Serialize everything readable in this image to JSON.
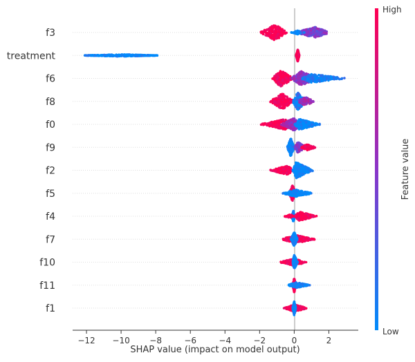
{
  "chart_data": {
    "type": "scatter",
    "subtype": "shap-beeswarm",
    "xlabel": "SHAP value (impact on model output)",
    "xlim": [
      -12.8,
      3.7
    ],
    "xticks": [
      -12,
      -10,
      -8,
      -6,
      -4,
      -2,
      0,
      2
    ],
    "colorbar": {
      "label": "Feature value",
      "high_label": "High",
      "low_label": "Low",
      "high_color": "#ff0052",
      "low_color": "#008bfb"
    },
    "features": [
      {
        "name": "f3",
        "clusters": [
          {
            "min": -2.0,
            "max": -0.4,
            "center": -1.1,
            "fv": 1.0,
            "n": 220,
            "spread": 0.9
          },
          {
            "min": 0.0,
            "max": 2.1,
            "center": 1.2,
            "fv": 0.45,
            "n": 220,
            "spread": 0.6
          },
          {
            "min": -0.2,
            "max": 0.6,
            "center": 0.2,
            "fv": 0.0,
            "n": 60,
            "spread": 0.2
          }
        ]
      },
      {
        "name": "treatment",
        "clusters": [
          {
            "min": -12.1,
            "max": -7.9,
            "center": -10.0,
            "fv": 0.0,
            "n": 400,
            "spread": 0.12,
            "uniform": true
          },
          {
            "min": 0.1,
            "max": 0.3,
            "center": 0.2,
            "fv": 1.0,
            "n": 150,
            "spread": 0.7
          }
        ]
      },
      {
        "name": "f6",
        "clusters": [
          {
            "min": -1.3,
            "max": 0.0,
            "center": -0.8,
            "fv": 1.0,
            "n": 220,
            "spread": 0.9
          },
          {
            "min": -0.2,
            "max": 1.4,
            "center": 0.4,
            "fv": 0.55,
            "n": 220,
            "spread": 0.8
          },
          {
            "min": 0.4,
            "max": 3.0,
            "center": 1.0,
            "fv": 0.05,
            "n": 200,
            "spread": 0.5
          }
        ]
      },
      {
        "name": "f8",
        "clusters": [
          {
            "min": -1.4,
            "max": 0.0,
            "center": -0.7,
            "fv": 1.0,
            "n": 220,
            "spread": 0.9
          },
          {
            "min": -0.1,
            "max": 0.7,
            "center": 0.2,
            "fv": 0.1,
            "n": 180,
            "spread": 1.0
          },
          {
            "min": 0.2,
            "max": 1.2,
            "center": 0.6,
            "fv": 0.6,
            "n": 100,
            "spread": 0.5
          }
        ]
      },
      {
        "name": "f0",
        "clusters": [
          {
            "min": -2.0,
            "max": -0.2,
            "center": -0.5,
            "fv": 1.0,
            "n": 200,
            "spread": 0.6
          },
          {
            "min": -0.8,
            "max": 0.4,
            "center": 0.0,
            "fv": 0.55,
            "n": 150,
            "spread": 0.7
          },
          {
            "min": 0.0,
            "max": 1.5,
            "center": 0.3,
            "fv": 0.0,
            "n": 180,
            "spread": 0.6
          }
        ]
      },
      {
        "name": "f9",
        "clusters": [
          {
            "min": -0.4,
            "max": 0.0,
            "center": -0.2,
            "fv": 0.0,
            "n": 220,
            "spread": 1.0
          },
          {
            "min": 0.0,
            "max": 0.7,
            "center": 0.2,
            "fv": 0.5,
            "n": 120,
            "spread": 0.6
          },
          {
            "min": 0.4,
            "max": 1.3,
            "center": 0.7,
            "fv": 1.0,
            "n": 100,
            "spread": 0.35
          }
        ]
      },
      {
        "name": "f2",
        "clusters": [
          {
            "min": -1.4,
            "max": 0.0,
            "center": -0.4,
            "fv": 1.0,
            "n": 220,
            "spread": 0.5
          },
          {
            "min": -0.1,
            "max": 1.1,
            "center": 0.1,
            "fv": 0.0,
            "n": 220,
            "spread": 0.9
          }
        ]
      },
      {
        "name": "f5",
        "clusters": [
          {
            "min": -0.3,
            "max": 0.1,
            "center": -0.1,
            "fv": 1.0,
            "n": 200,
            "spread": 0.9
          },
          {
            "min": -0.7,
            "max": 1.1,
            "center": 0.1,
            "fv": 0.0,
            "n": 200,
            "spread": 0.4
          }
        ]
      },
      {
        "name": "f4",
        "clusters": [
          {
            "min": -0.15,
            "max": 0.05,
            "center": -0.05,
            "fv": 0.0,
            "n": 150,
            "spread": 0.6
          },
          {
            "min": 0.0,
            "max": 1.3,
            "center": 0.3,
            "fv": 1.0,
            "n": 220,
            "spread": 0.5
          },
          {
            "min": -0.6,
            "max": 0.0,
            "center": -0.2,
            "fv": 1.0,
            "n": 40,
            "spread": 0.2
          }
        ]
      },
      {
        "name": "f7",
        "clusters": [
          {
            "min": -0.8,
            "max": 1.2,
            "center": 0.1,
            "fv": 1.0,
            "n": 220,
            "spread": 0.45
          },
          {
            "min": -0.2,
            "max": 0.2,
            "center": 0.0,
            "fv": 0.0,
            "n": 180,
            "spread": 0.8
          }
        ]
      },
      {
        "name": "f10",
        "clusters": [
          {
            "min": -0.9,
            "max": 0.7,
            "center": 0.0,
            "fv": 1.0,
            "n": 200,
            "spread": 0.4
          },
          {
            "min": -0.1,
            "max": 0.2,
            "center": 0.0,
            "fv": 0.0,
            "n": 180,
            "spread": 0.8
          }
        ]
      },
      {
        "name": "f11",
        "clusters": [
          {
            "min": -0.1,
            "max": 0.1,
            "center": 0.0,
            "fv": 1.0,
            "n": 200,
            "spread": 0.8
          },
          {
            "min": -0.4,
            "max": 1.0,
            "center": 0.1,
            "fv": 0.0,
            "n": 150,
            "spread": 0.3
          }
        ]
      },
      {
        "name": "f1",
        "clusters": [
          {
            "min": -0.6,
            "max": 0.8,
            "center": 0.0,
            "fv": 1.0,
            "n": 200,
            "spread": 0.4
          },
          {
            "min": -0.1,
            "max": 0.1,
            "center": 0.0,
            "fv": 0.0,
            "n": 180,
            "spread": 0.8
          }
        ]
      }
    ]
  }
}
